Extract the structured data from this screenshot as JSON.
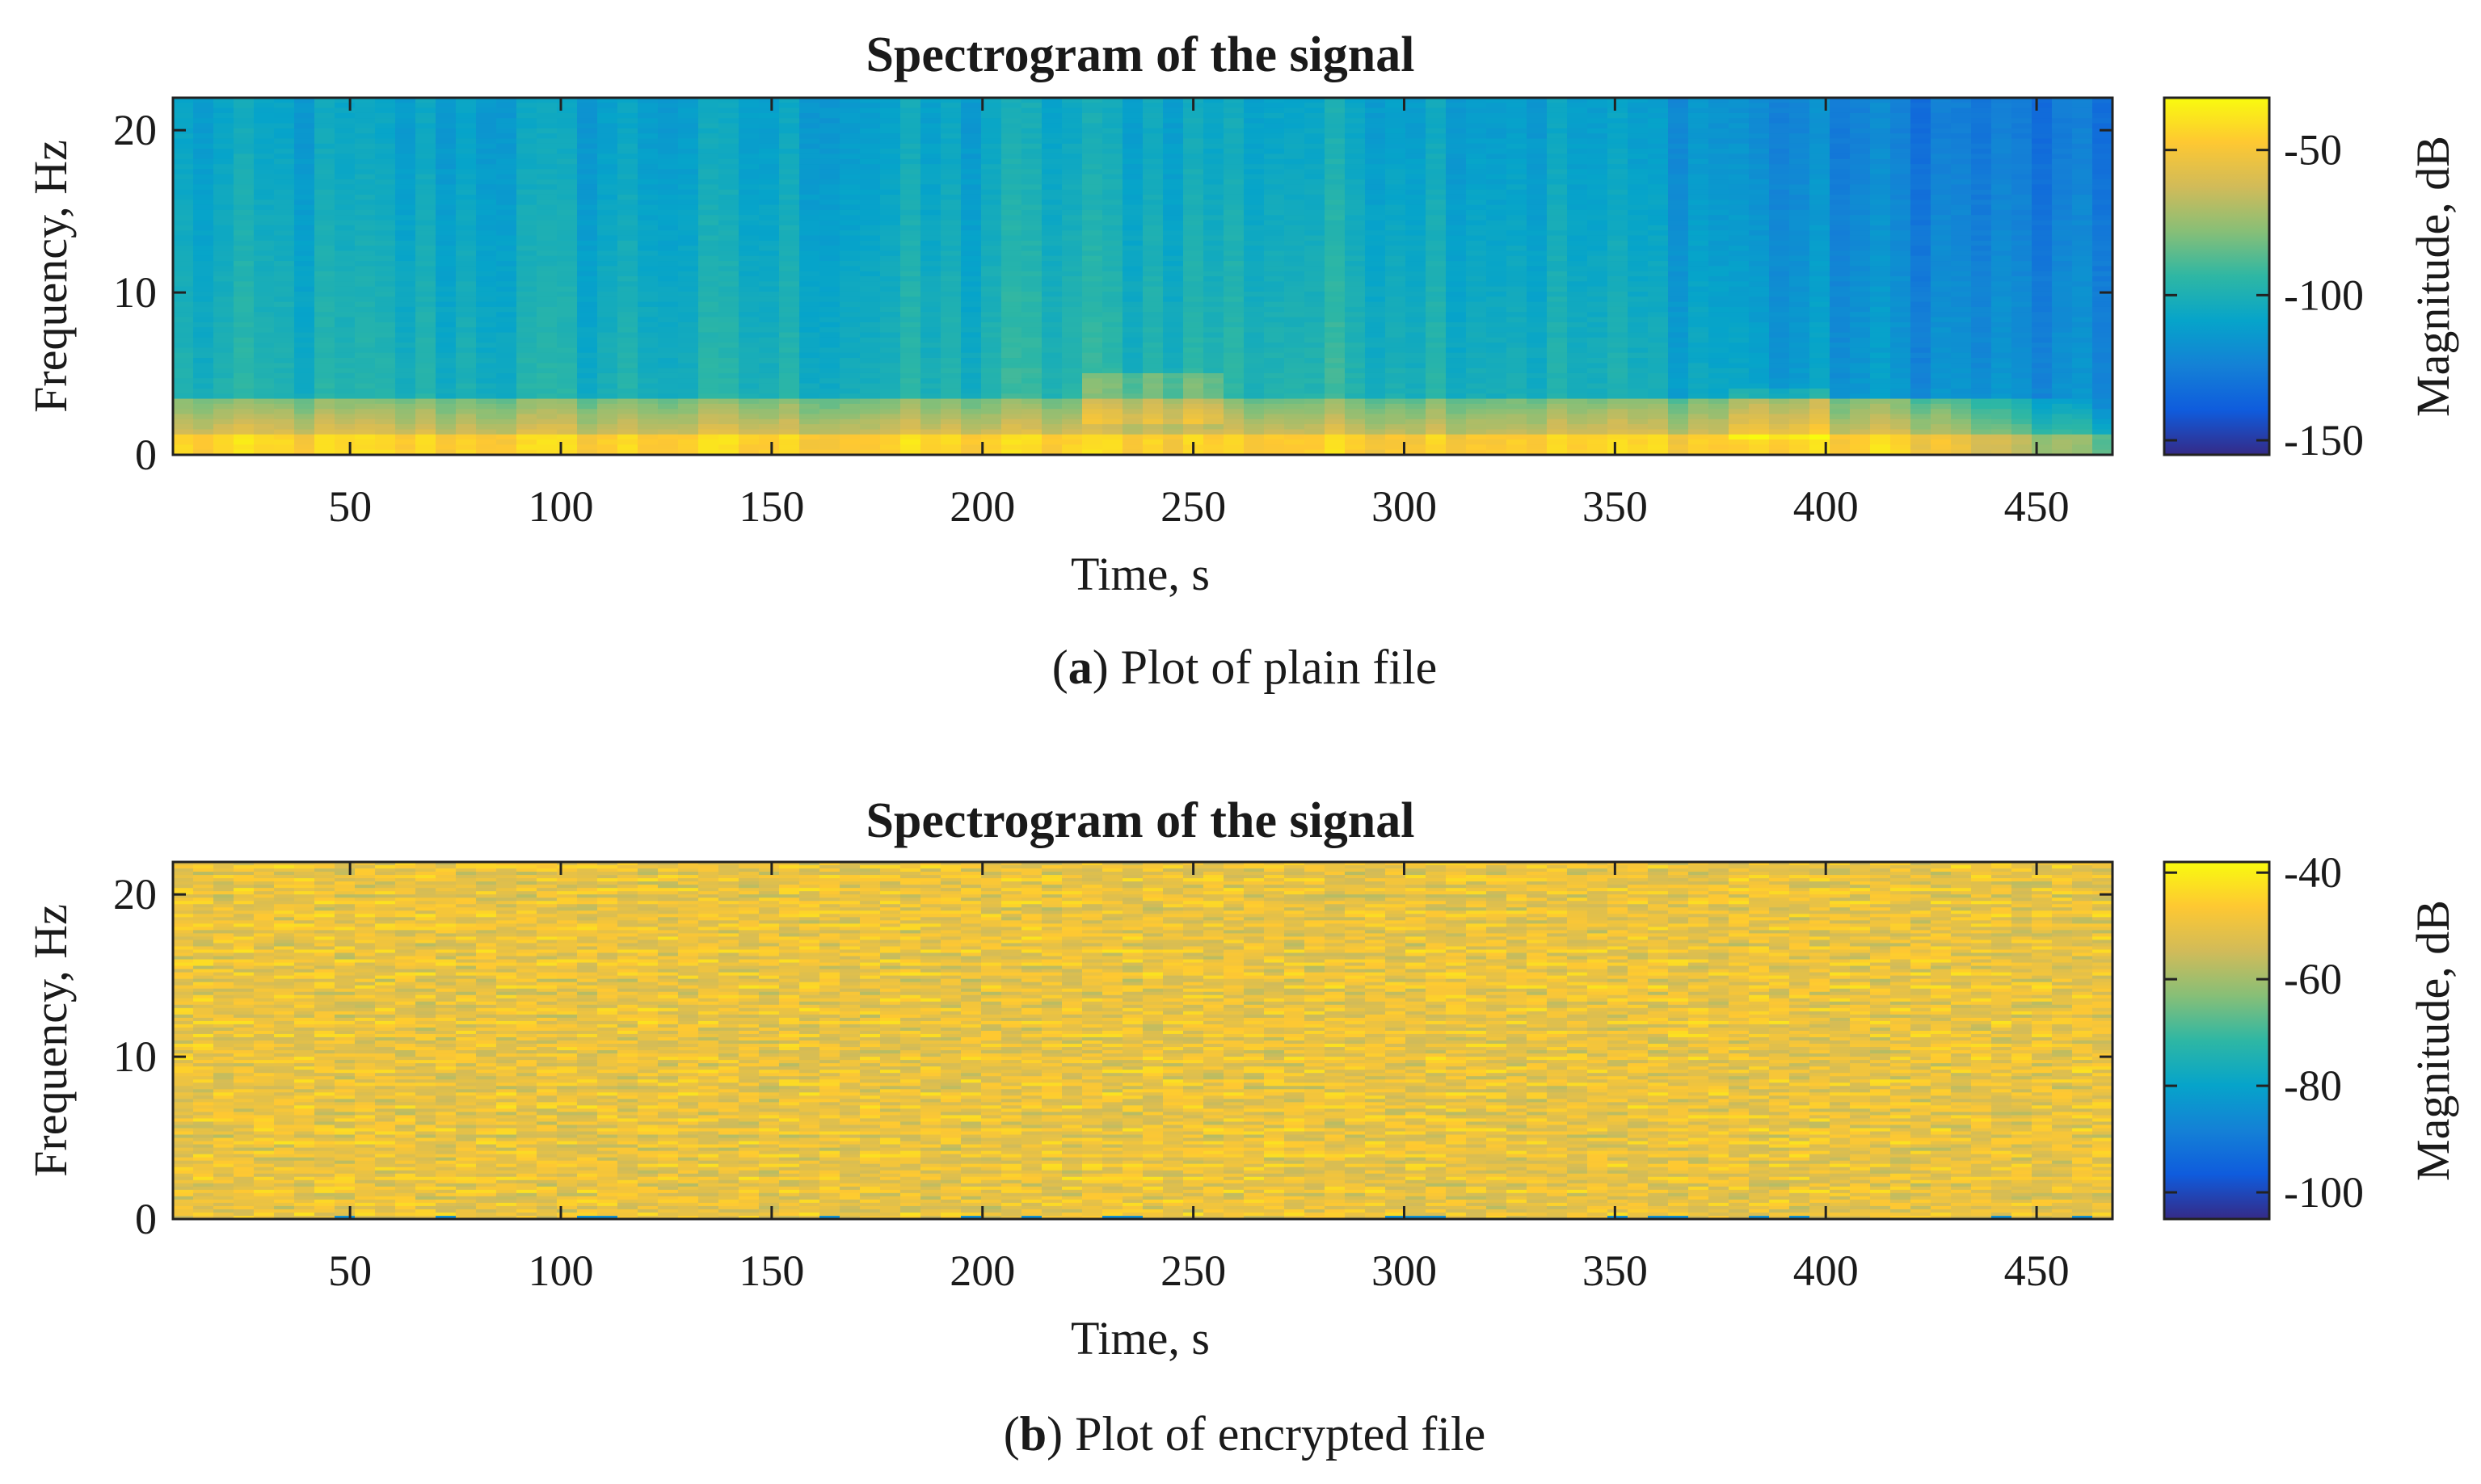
{
  "figure": {
    "panels": [
      {
        "caption_letter": "a",
        "caption_text": "Plot of plain file"
      },
      {
        "caption_letter": "b",
        "caption_text": "Plot of encrypted file"
      }
    ]
  },
  "chart_data": [
    {
      "type": "heatmap",
      "title": "Spectrogram of the signal",
      "xlabel": "Time, s",
      "ylabel": "Frequency, Hz",
      "colorbar_label": "Magnitude, dB",
      "xlim": [
        8,
        468
      ],
      "ylim": [
        0,
        22
      ],
      "x_ticks": [
        50,
        100,
        150,
        200,
        250,
        300,
        350,
        400,
        450
      ],
      "y_ticks": [
        0,
        10,
        20
      ],
      "clim": [
        -155,
        -32
      ],
      "colorbar_ticks": [
        -150,
        -100,
        -50
      ],
      "colormap": "parula",
      "pattern": "low-frequency band (0-3 Hz) at high magnitude (-40 to -60 dB, yellow); upper frequencies at -100 to -130 dB (cyan to blue) with vertical striping; darker blue toward end of recording",
      "grid": false
    },
    {
      "type": "heatmap",
      "title": "Spectrogram of the signal",
      "xlabel": "Time, s",
      "ylabel": "Frequency, Hz",
      "colorbar_label": "Magnitude, dB",
      "xlim": [
        8,
        468
      ],
      "ylim": [
        0,
        22
      ],
      "x_ticks": [
        50,
        100,
        150,
        200,
        250,
        300,
        350,
        400,
        450
      ],
      "y_ticks": [
        0,
        10,
        20
      ],
      "clim": [
        -105,
        -38
      ],
      "colorbar_ticks": [
        -100,
        -80,
        -60,
        -40
      ],
      "colormap": "parula",
      "pattern": "nearly uniform high magnitude (-45 to -55 dB, yellow-orange) noise across all times and frequencies with thin horizontal streaks",
      "grid": false
    }
  ],
  "colors": {
    "parula_stops": [
      "#352a87",
      "#0f5cdd",
      "#1481d6",
      "#06a4ca",
      "#2eb7a4",
      "#87bf77",
      "#d1bb59",
      "#fec832",
      "#f9fb0e"
    ]
  }
}
